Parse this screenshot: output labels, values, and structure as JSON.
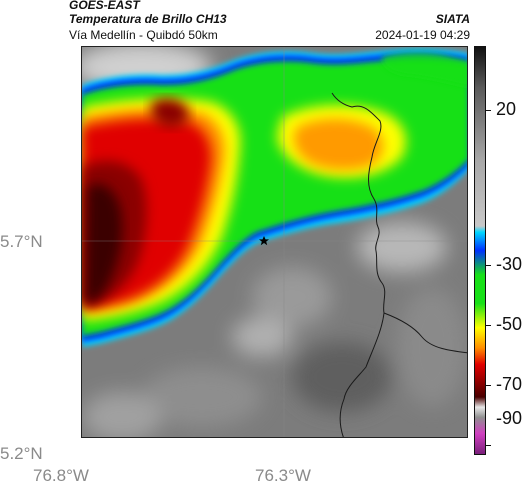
{
  "header": {
    "satellite": "GOES-EAST",
    "product": "Temperatura de Brillo CH13",
    "region": "Vía Medellín - Quibdó 50km",
    "organization": "SIATA",
    "timestamp": "2024-01-19 04:29"
  },
  "map": {
    "latitude_labels": [
      "5.7°N",
      "5.2°N"
    ],
    "longitude_labels": [
      "76.8°W",
      "76.3°W"
    ],
    "marker_icon": "star-icon"
  },
  "colorbar": {
    "labels": [
      "20",
      "-30",
      "-50",
      "-70",
      "-90"
    ],
    "colors": {
      "warm": "#c8c8c8",
      "cyan": "#00d8ff",
      "blue": "#0030ff",
      "green": "#18e018",
      "yellow": "#ffff00",
      "orange": "#ff8c00",
      "red": "#e00000",
      "dark_red": "#4a0000",
      "magenta": "#d040c0"
    }
  }
}
